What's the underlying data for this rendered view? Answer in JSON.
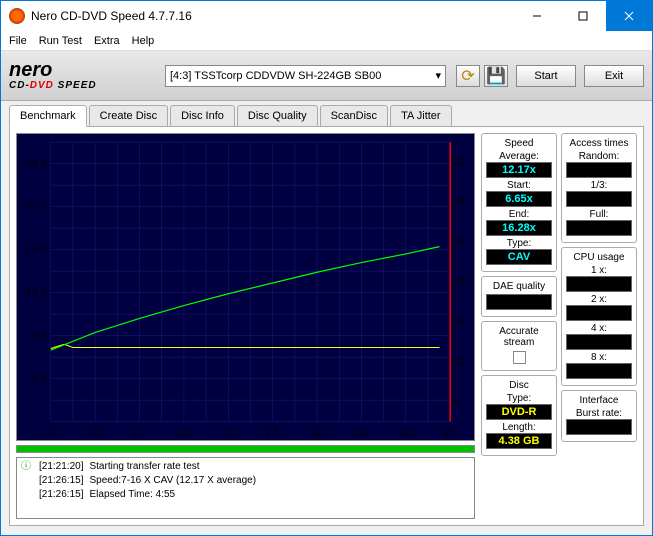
{
  "window": {
    "title": "Nero CD-DVD Speed 4.7.7.16"
  },
  "menu": {
    "file": "File",
    "runtest": "Run Test",
    "extra": "Extra",
    "help": "Help"
  },
  "toolbar": {
    "logo_main": "nero",
    "logo_sub_cd": "CD-",
    "logo_sub_dvd": "DVD",
    "logo_sub_speed": " SPEED",
    "drive": "[4:3]   TSSTcorp CDDVDW SH-224GB SB00",
    "start": "Start",
    "exit": "Exit"
  },
  "tabs": {
    "benchmark": "Benchmark",
    "createdisc": "Create Disc",
    "discinfo": "Disc Info",
    "discquality": "Disc Quality",
    "scandisc": "ScanDisc",
    "tajitter": "TA Jitter"
  },
  "chart": {
    "bg": "#000040",
    "grid": "#1a1a80",
    "border_right": "#ff0000",
    "left_ticks": [
      "4 X",
      "8 X",
      "12 X",
      "16 X",
      "20 X",
      "24 X"
    ],
    "left_values": [
      4,
      8,
      12,
      16,
      20,
      24
    ],
    "right_ticks": [
      "8",
      "12",
      "16",
      "20",
      "24",
      "28",
      "32"
    ],
    "right_values": [
      8,
      12,
      16,
      20,
      24,
      28,
      32
    ],
    "bottom_ticks": [
      "0.0",
      "0.5",
      "1.0",
      "1.5",
      "2.0",
      "2.5",
      "3.0",
      "3.5",
      "4.0",
      "4.5"
    ],
    "x_max": 4.5,
    "y_left_max": 26,
    "green_line": {
      "color": "#00ff00",
      "points": [
        [
          0.0,
          6.65
        ],
        [
          0.5,
          8.3
        ],
        [
          1.0,
          9.6
        ],
        [
          1.5,
          10.8
        ],
        [
          2.0,
          11.9
        ],
        [
          2.5,
          12.9
        ],
        [
          3.0,
          13.9
        ],
        [
          3.5,
          14.8
        ],
        [
          4.0,
          15.6
        ],
        [
          4.38,
          16.28
        ]
      ]
    },
    "yellow_line": {
      "color": "#ffff00",
      "points": [
        [
          0.0,
          6.8
        ],
        [
          0.15,
          7.2
        ],
        [
          0.25,
          6.9
        ],
        [
          4.38,
          6.9
        ]
      ]
    }
  },
  "log": {
    "r1": {
      "time": "[21:21:20]",
      "msg": "Starting transfer rate test"
    },
    "r2": {
      "time": "[21:26:15]",
      "msg": "Speed:7-16 X CAV (12.17 X average)"
    },
    "r3": {
      "time": "[21:26:15]",
      "msg": "Elapsed Time:   4:55"
    }
  },
  "speed": {
    "title": "Speed",
    "avg_l": "Average:",
    "avg_v": "12.17x",
    "start_l": "Start:",
    "start_v": "6.65x",
    "end_l": "End:",
    "end_v": "16.28x",
    "type_l": "Type:",
    "type_v": "CAV"
  },
  "dae": {
    "title": "DAE quality",
    "val": ""
  },
  "accurate": {
    "title": "Accurate stream"
  },
  "disc": {
    "title": "Disc",
    "type_l": "Type:",
    "type_v": "DVD-R",
    "len_l": "Length:",
    "len_v": "4.38 GB"
  },
  "access": {
    "title": "Access times",
    "rand_l": "Random:",
    "rand_v": "",
    "t13_l": "1/3:",
    "t13_v": "",
    "full_l": "Full:",
    "full_v": ""
  },
  "cpu": {
    "title": "CPU usage",
    "x1_l": "1 x:",
    "x1_v": "",
    "x2_l": "2 x:",
    "x2_v": "",
    "x4_l": "4 x:",
    "x4_v": "",
    "x8_l": "8 x:",
    "x8_v": ""
  },
  "iface": {
    "title": "Interface",
    "burst_l": "Burst rate:",
    "burst_v": ""
  }
}
